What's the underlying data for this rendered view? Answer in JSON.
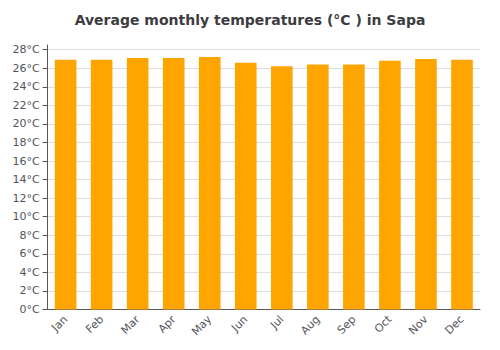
{
  "chart_data": {
    "type": "bar",
    "title": "Average monthly temperatures (°C ) in Sapa",
    "categories": [
      "Jan",
      "Feb",
      "Mar",
      "Apr",
      "May",
      "Jun",
      "Jul",
      "Aug",
      "Sep",
      "Oct",
      "Nov",
      "Dec"
    ],
    "values": [
      26.9,
      26.9,
      27.1,
      27.1,
      27.2,
      26.6,
      26.2,
      26.4,
      26.4,
      26.8,
      27.0,
      26.9
    ],
    "color": "#FFA500",
    "ylim": [
      0,
      28.5
    ],
    "yticks": [
      {
        "value": 0,
        "label": "0°C"
      },
      {
        "value": 2,
        "label": "2°C"
      },
      {
        "value": 4,
        "label": "4°C"
      },
      {
        "value": 6,
        "label": "6°C"
      },
      {
        "value": 8,
        "label": "8°C"
      },
      {
        "value": 10,
        "label": "10°C"
      },
      {
        "value": 12,
        "label": "12°C"
      },
      {
        "value": 14,
        "label": "14°C"
      },
      {
        "value": 16,
        "label": "16°C"
      },
      {
        "value": 18,
        "label": "18°C"
      },
      {
        "value": 20,
        "label": "20°C"
      },
      {
        "value": 22,
        "label": "22°C"
      },
      {
        "value": 24,
        "label": "24°C"
      },
      {
        "value": 26,
        "label": "26°C"
      },
      {
        "value": 28,
        "label": "28°C"
      }
    ],
    "grid": true
  }
}
